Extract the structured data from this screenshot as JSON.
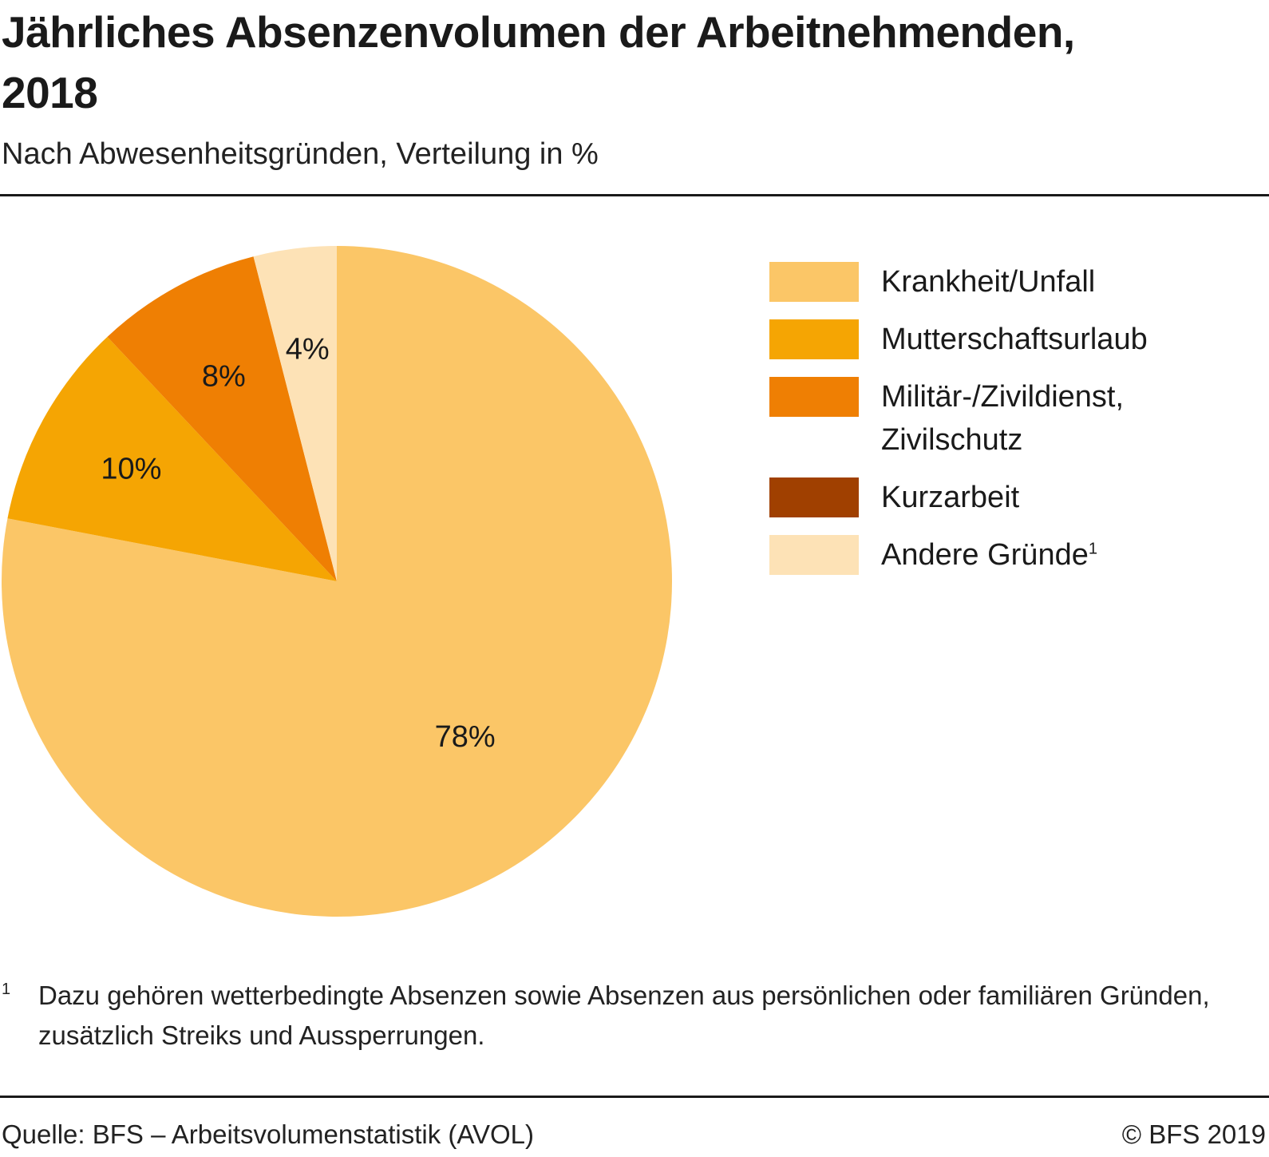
{
  "chart_data": {
    "type": "pie",
    "title": "Jährliches Absenzenvolumen der Arbeitnehmenden, 2018",
    "subtitle": "Nach Abwesenheitsgründen, Verteilung in %",
    "unit": "%",
    "legend_position": "right",
    "slices": [
      {
        "label": "Krankheit/Unfall",
        "value": 78,
        "display": "78%",
        "color": "#FBC667"
      },
      {
        "label": "Mutterschaftsurlaub",
        "value": 10,
        "display": "10%",
        "color": "#F5A503"
      },
      {
        "label": "Militär-/Zivildienst, Zivilschutz",
        "value": 8,
        "display": "8%",
        "color": "#EF7F03"
      },
      {
        "label": "Kurzarbeit",
        "value": 0,
        "display": "",
        "color": "#A04000"
      },
      {
        "label": "Andere Gründe",
        "value": 4,
        "display": "4%",
        "color": "#FDE2B6",
        "footnote_ref": "1"
      }
    ]
  },
  "header": {
    "title_line1": "Jährliches Absenzenvolumen der Arbeitnehmenden,",
    "title_line2": "2018",
    "subtitle": "Nach Abwesenheitsgründen, Verteilung in %"
  },
  "legend": {
    "items": [
      {
        "label": "Krankheit/Unfall",
        "color": "#FBC667",
        "sup": ""
      },
      {
        "label": "Mutterschaftsurlaub",
        "color": "#F5A503",
        "sup": ""
      },
      {
        "label": "Militär-/Zivildienst,\nZivilschutz",
        "color": "#EF7F03",
        "sup": ""
      },
      {
        "label": "Kurzarbeit",
        "color": "#A04000",
        "sup": ""
      },
      {
        "label": "Andere Gründe",
        "color": "#FDE2B6",
        "sup": "1"
      }
    ]
  },
  "footnote": {
    "mark": "1",
    "text": "Dazu gehören wetterbedingte Absenzen sowie Absenzen aus persönlichen oder familiären Gründen, zusätzlich Streiks und Aussperrungen."
  },
  "footer": {
    "source": "Quelle: BFS – Arbeitsvolumenstatistik (AVOL)",
    "copyright": "© BFS 2019"
  }
}
